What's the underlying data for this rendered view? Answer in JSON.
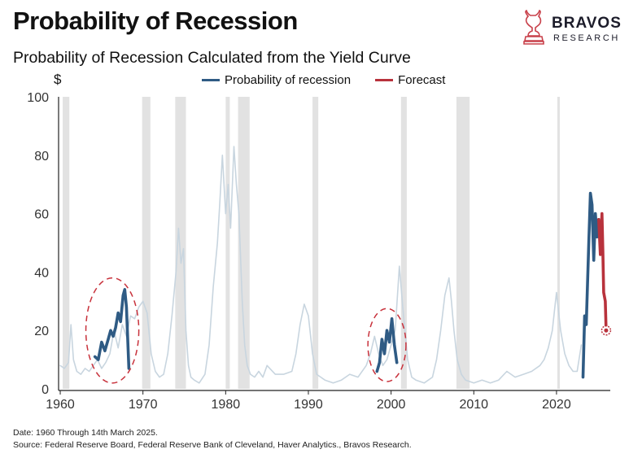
{
  "header": {
    "title": "Probability of Recession",
    "subtitle": "Probability of Recession Calculated from the Yield Curve"
  },
  "logo": {
    "name": "BRAVOS",
    "tagline": "RESEARCH",
    "icon": "bull-knight-icon",
    "color": "#c8404a"
  },
  "colors": {
    "history": "#c8d5df",
    "highlight": "#2f5b84",
    "forecast": "#b8323c",
    "recession_band": "#e2e2e2",
    "ellipse": "#c8323c"
  },
  "footer": {
    "date_note": "Date: 1960 Through 14th March 2025.",
    "source": "Source: Federal Reserve Board, Federal Reserve Bank of Cleveland, Haver Analytics., Bravos Research."
  },
  "chart_data": {
    "type": "line",
    "title": "Probability of Recession Calculated from the Yield Curve",
    "ylabel": "$",
    "xlim": [
      1959.8,
      2026.5
    ],
    "ylim": [
      0,
      100
    ],
    "yticks": [
      0,
      20,
      40,
      60,
      80,
      100
    ],
    "xticks": [
      1960,
      1970,
      1980,
      1990,
      2000,
      2010,
      2020
    ],
    "legend": [
      {
        "name": "Probability of recession",
        "color": "#2f5b84"
      },
      {
        "name": "Forecast",
        "color": "#b8323c"
      }
    ],
    "recessions": [
      [
        1960.3,
        1961.1
      ],
      [
        1969.9,
        1970.9
      ],
      [
        1973.9,
        1975.2
      ],
      [
        1980.0,
        1980.5
      ],
      [
        1981.5,
        1982.9
      ],
      [
        1990.5,
        1991.2
      ],
      [
        2001.2,
        2001.9
      ],
      [
        2007.9,
        2009.5
      ],
      [
        2020.1,
        2020.4
      ]
    ],
    "series": [
      {
        "name": "Probability of recession (history)",
        "color": "#c8d5df",
        "x": [
          1960.0,
          1960.5,
          1961.0,
          1961.3,
          1961.6,
          1962.0,
          1962.5,
          1963.0,
          1963.5,
          1964.0,
          1964.5,
          1965.0,
          1965.5,
          1966.0,
          1966.5,
          1967.0,
          1967.5,
          1968.0,
          1968.5,
          1969.0,
          1969.5,
          1970.0,
          1970.5,
          1971.0,
          1971.5,
          1972.0,
          1972.5,
          1973.0,
          1973.5,
          1974.0,
          1974.3,
          1974.6,
          1974.9,
          1975.2,
          1975.5,
          1975.8,
          1976.2,
          1976.8,
          1977.5,
          1978.0,
          1978.5,
          1979.0,
          1979.3,
          1979.6,
          1980.0,
          1980.3,
          1980.6,
          1981.0,
          1981.3,
          1981.6,
          1982.0,
          1982.3,
          1982.6,
          1983.0,
          1983.5,
          1984.0,
          1984.5,
          1985.0,
          1986.0,
          1987.0,
          1988.0,
          1988.5,
          1989.0,
          1989.5,
          1990.0,
          1990.5,
          1991.0,
          1991.5,
          1992.0,
          1993.0,
          1994.0,
          1995.0,
          1996.0,
          1997.0,
          1997.5,
          1998.0,
          1998.5,
          1999.0,
          1999.5,
          2000.0,
          2000.5,
          2001.0,
          2001.5,
          2002.0,
          2002.5,
          2003.0,
          2004.0,
          2005.0,
          2005.5,
          2006.0,
          2006.5,
          2007.0,
          2007.3,
          2007.6,
          2008.0,
          2008.5,
          2009.0,
          2010.0,
          2011.0,
          2012.0,
          2013.0,
          2014.0,
          2015.0,
          2016.0,
          2017.0,
          2018.0,
          2018.5,
          2019.0,
          2019.5,
          2019.8,
          2020.0,
          2020.5,
          2021.0,
          2021.5,
          2022.0,
          2022.5,
          2023.0
        ],
        "values": [
          8,
          7,
          9,
          22,
          10,
          6,
          5,
          7,
          6,
          8,
          10,
          7,
          9,
          12,
          20,
          14,
          22,
          18,
          25,
          24,
          28,
          30,
          26,
          12,
          6,
          4,
          5,
          12,
          25,
          40,
          55,
          43,
          48,
          20,
          8,
          4,
          3,
          2,
          5,
          15,
          35,
          50,
          64,
          80,
          60,
          70,
          55,
          83,
          70,
          60,
          30,
          15,
          8,
          5,
          4,
          6,
          4,
          8,
          5,
          5,
          6,
          12,
          22,
          29,
          25,
          12,
          5,
          4,
          3,
          2,
          3,
          5,
          4,
          8,
          12,
          18,
          12,
          8,
          10,
          15,
          20,
          42,
          25,
          10,
          4,
          3,
          2,
          4,
          10,
          20,
          32,
          38,
          30,
          20,
          10,
          5,
          3,
          2,
          3,
          2,
          3,
          6,
          4,
          5,
          6,
          8,
          10,
          14,
          20,
          28,
          33,
          20,
          12,
          8,
          6,
          6,
          15
        ]
      },
      {
        "name": "Probability of recession",
        "color": "#2f5b84",
        "x": [
          1964.2,
          1964.6,
          1965.0,
          1965.4,
          1965.8,
          1966.1,
          1966.4,
          1966.7,
          1967.0,
          1967.3,
          1967.6,
          1967.8,
          1968.0,
          1968.3
        ],
        "values": [
          11,
          10,
          16,
          13,
          17,
          20,
          18,
          21,
          26,
          23,
          32,
          34,
          28,
          7
        ]
      },
      {
        "name": "Probability of recession",
        "color": "#2f5b84",
        "x": [
          1998.3,
          1998.6,
          1998.9,
          1999.2,
          1999.5,
          1999.8,
          2000.1,
          2000.4,
          2000.7
        ],
        "values": [
          6,
          9,
          17,
          12,
          20,
          16,
          24,
          15,
          9
        ]
      },
      {
        "name": "Probability of recession",
        "color": "#2f5b84",
        "x": [
          2023.2,
          2023.4,
          2023.6,
          2023.9,
          2024.1,
          2024.3,
          2024.5,
          2024.7,
          2024.9,
          2025.1
        ],
        "values": [
          4,
          25,
          22,
          50,
          67,
          63,
          44,
          60,
          52,
          58
        ]
      },
      {
        "name": "Forecast",
        "color": "#b8323c",
        "x": [
          2025.1,
          2025.3,
          2025.5,
          2025.6,
          2025.7,
          2025.9,
          2026.0
        ],
        "values": [
          58,
          46,
          60,
          47,
          33,
          30,
          20
        ]
      }
    ],
    "annotations": [
      {
        "type": "ellipse",
        "center": [
          1966.3,
          20
        ],
        "span_years": 6.4,
        "span_value": 36
      },
      {
        "type": "ellipse",
        "center": [
          1999.5,
          15
        ],
        "span_years": 4.6,
        "span_value": 25
      },
      {
        "type": "marker",
        "x": 2026.0,
        "value": 20
      }
    ]
  }
}
